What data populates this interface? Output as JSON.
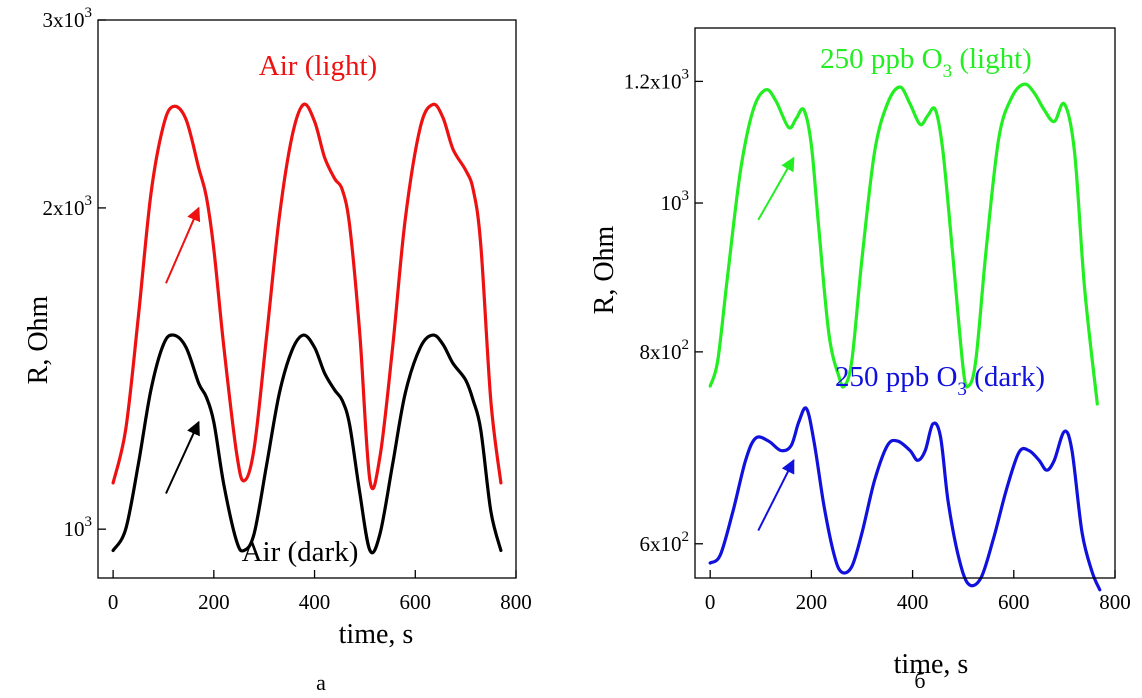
{
  "chart_data": [
    {
      "type": "line",
      "panel_label": "а",
      "xlabel": "time, s",
      "ylabel": "R, Ohm",
      "xlim": [
        -30,
        800
      ],
      "ylim": [
        900,
        3000
      ],
      "yscale": "log",
      "x_ticks": [
        {
          "value": 0,
          "label": "0"
        },
        {
          "value": 200,
          "label": "200"
        },
        {
          "value": 400,
          "label": "400"
        },
        {
          "value": 600,
          "label": "600"
        },
        {
          "value": 800,
          "label": "800"
        }
      ],
      "y_ticks": [
        {
          "value": 1000,
          "base": "10",
          "exp": "3"
        },
        {
          "value": 2000,
          "base": "2x10",
          "exp": "3"
        },
        {
          "value": 3000,
          "base": "3x10",
          "exp": "3"
        }
      ],
      "grid": false,
      "series": [
        {
          "name": "Air (light)",
          "color": "#ee1111",
          "x": [
            0,
            25,
            50,
            75,
            100,
            120,
            145,
            170,
            185,
            200,
            220,
            245,
            260,
            280,
            305,
            330,
            355,
            378,
            400,
            420,
            440,
            455,
            470,
            490,
            510,
            530,
            555,
            580,
            610,
            635,
            655,
            675,
            700,
            715,
            730,
            750,
            770
          ],
          "y": [
            1105,
            1240,
            1580,
            2060,
            2390,
            2490,
            2420,
            2180,
            2050,
            1830,
            1480,
            1180,
            1110,
            1190,
            1520,
            1960,
            2330,
            2500,
            2410,
            2230,
            2130,
            2080,
            1920,
            1520,
            1110,
            1170,
            1480,
            1950,
            2380,
            2500,
            2430,
            2270,
            2170,
            2080,
            1850,
            1320,
            1105
          ]
        },
        {
          "name": "Air (dark)",
          "color": "#000000",
          "x": [
            0,
            25,
            50,
            75,
            100,
            120,
            145,
            170,
            185,
            200,
            220,
            245,
            260,
            280,
            305,
            330,
            355,
            378,
            400,
            420,
            440,
            455,
            470,
            490,
            510,
            530,
            555,
            580,
            610,
            635,
            655,
            675,
            700,
            715,
            730,
            750,
            770
          ],
          "y": [
            955,
            1000,
            1150,
            1350,
            1490,
            1520,
            1480,
            1370,
            1330,
            1260,
            1100,
            975,
            955,
            990,
            1150,
            1340,
            1470,
            1520,
            1480,
            1400,
            1350,
            1320,
            1250,
            1080,
            955,
            990,
            1150,
            1340,
            1480,
            1520,
            1490,
            1430,
            1380,
            1320,
            1240,
            1040,
            955
          ]
        }
      ],
      "annotations": [
        {
          "color": "#ee1111",
          "from": [
            105,
            1700
          ],
          "to": [
            170,
            2000
          ]
        },
        {
          "color": "#000000",
          "from": [
            105,
            1080
          ],
          "to": [
            170,
            1260
          ]
        }
      ]
    },
    {
      "type": "line",
      "panel_label": "б",
      "xlabel": "time, s",
      "ylabel": "R, Ohm",
      "xlim": [
        -30,
        800
      ],
      "ylim": [
        570,
        1300
      ],
      "yscale": "log",
      "x_ticks": [
        {
          "value": 0,
          "label": "0"
        },
        {
          "value": 200,
          "label": "200"
        },
        {
          "value": 400,
          "label": "400"
        },
        {
          "value": 600,
          "label": "600"
        },
        {
          "value": 800,
          "label": "800"
        }
      ],
      "y_ticks": [
        {
          "value": 600,
          "base": "6x10",
          "exp": "2"
        },
        {
          "value": 800,
          "base": "8x10",
          "exp": "2"
        },
        {
          "value": 1000,
          "base": "10",
          "exp": "3"
        },
        {
          "value": 1200,
          "base": "1.2x10",
          "exp": "3"
        }
      ],
      "grid": false,
      "series": [
        {
          "name_main": "250 ppb O",
          "name_sub": "3",
          "name_tail": " (light)",
          "color": "#22ee22",
          "x": [
            0,
            15,
            35,
            60,
            85,
            110,
            130,
            155,
            170,
            185,
            200,
            215,
            235,
            255,
            265,
            280,
            300,
            325,
            350,
            375,
            395,
            415,
            430,
            445,
            460,
            480,
            500,
            510,
            525,
            545,
            570,
            595,
            620,
            640,
            660,
            680,
            700,
            720,
            740,
            765
          ],
          "y": [
            760,
            790,
            900,
            1050,
            1150,
            1185,
            1165,
            1120,
            1135,
            1150,
            1090,
            960,
            820,
            770,
            760,
            790,
            920,
            1080,
            1160,
            1190,
            1160,
            1125,
            1140,
            1150,
            1080,
            920,
            780,
            760,
            790,
            930,
            1100,
            1170,
            1195,
            1180,
            1150,
            1130,
            1160,
            1080,
            880,
            740
          ]
        },
        {
          "name_main": "250 ppb O",
          "name_sub": "3",
          "name_tail": " (dark)",
          "color": "#1111dd",
          "x": [
            0,
            20,
            45,
            70,
            90,
            115,
            140,
            160,
            175,
            190,
            205,
            225,
            245,
            260,
            280,
            300,
            325,
            350,
            370,
            395,
            410,
            425,
            440,
            455,
            470,
            490,
            510,
            535,
            560,
            585,
            610,
            630,
            650,
            665,
            680,
            700,
            715,
            735,
            755,
            770
          ],
          "y": [
            583,
            590,
            630,
            680,
            703,
            700,
            690,
            695,
            720,
            735,
            700,
            635,
            590,
            575,
            580,
            610,
            660,
            695,
            700,
            690,
            680,
            690,
            718,
            705,
            640,
            590,
            565,
            570,
            605,
            650,
            688,
            690,
            680,
            670,
            680,
            710,
            690,
            610,
            575,
            560
          ]
        }
      ],
      "annotations": [
        {
          "color": "#22ee22",
          "from": [
            95,
            975
          ],
          "to": [
            165,
            1070
          ]
        },
        {
          "color": "#1111dd",
          "from": [
            95,
            612
          ],
          "to": [
            165,
            680
          ]
        }
      ]
    }
  ]
}
